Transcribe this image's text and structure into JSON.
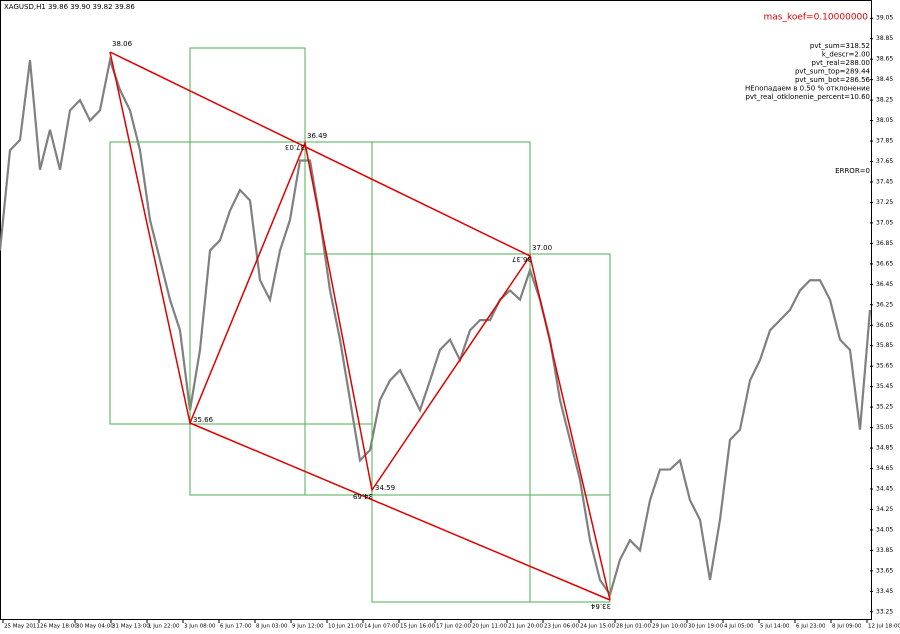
{
  "chart_data": {
    "type": "line",
    "title": "XAGUSD,H1  39.86 39.90 39.82 39.86",
    "koef": "mas_koef=0.10000000",
    "info": [
      "pvt_sum=318.52",
      "k_descr=2.00",
      "pvt_real=288.00",
      "pvt_sum_top=289.44",
      "pvt_sum_bot=286.56",
      "НЕпопадаем в 0.50 % отклонение",
      "pvt_real_otklonenie_percent=10.60"
    ],
    "error": "ERROR=0",
    "annotations": [
      "38.06",
      "36.49",
      "37.00",
      "35.66",
      "34.59"
    ],
    "annotations_flipped": [
      "37.03",
      "36.37",
      "34.69",
      "33.64"
    ],
    "x": [
      0,
      1,
      2,
      3,
      4,
      5,
      6,
      7,
      8,
      9,
      10,
      11,
      12,
      13,
      14,
      15,
      16,
      17,
      18,
      19,
      20,
      21,
      22,
      23,
      24,
      25,
      26,
      27,
      28,
      29,
      30,
      31,
      32,
      33,
      34,
      35,
      36,
      37,
      38,
      39,
      40,
      41,
      42,
      43,
      44,
      45,
      46,
      47,
      48,
      49,
      50,
      51,
      52,
      53,
      54,
      55,
      56,
      57,
      58,
      59,
      60,
      61,
      62,
      63,
      64,
      65,
      66,
      67,
      68,
      69,
      70,
      71,
      72,
      73,
      74,
      75,
      76,
      77,
      78,
      79,
      80,
      81,
      82,
      83,
      84,
      85,
      86,
      87
    ],
    "series": [
      {
        "name": "XAGUSD",
        "color": "#808080",
        "values": [
          36.78,
          37.76,
          37.86,
          38.64,
          37.57,
          37.96,
          37.57,
          38.15,
          38.25,
          38.05,
          38.15,
          38.64,
          38.35,
          38.15,
          37.76,
          37.08,
          36.69,
          36.3,
          36.0,
          35.22,
          35.81,
          36.78,
          36.88,
          37.17,
          37.37,
          37.27,
          36.49,
          36.3,
          36.78,
          37.08,
          37.66,
          37.66,
          37.08,
          36.39,
          35.91,
          35.32,
          34.73,
          34.83,
          35.32,
          35.51,
          35.61,
          35.42,
          35.22,
          35.51,
          35.81,
          35.91,
          35.71,
          36.0,
          36.1,
          36.1,
          36.3,
          36.39,
          36.3,
          36.59,
          36.3,
          35.91,
          35.32,
          34.93,
          34.54,
          33.95,
          33.56,
          33.42,
          33.76,
          33.95,
          33.85,
          34.34,
          34.64,
          34.64,
          34.73,
          34.34,
          34.15,
          33.56,
          34.15,
          34.93,
          35.03,
          35.51,
          35.71,
          36.0,
          36.1,
          36.2,
          36.39,
          36.49,
          36.49,
          36.3,
          35.91,
          35.81,
          35.03,
          36.2
        ]
      }
    ],
    "xlim": [
      0,
      87
    ],
    "xticks": [
      {
        "value": 0.3,
        "label": "25 May 2011"
      },
      {
        "value": 3.9,
        "label": "26 May 18:00"
      },
      {
        "value": 7.5,
        "label": "30 May 04:00"
      },
      {
        "value": 11.1,
        "label": "31 May 13:00"
      },
      {
        "value": 14.7,
        "label": "1 Jun 22:00"
      },
      {
        "value": 18.3,
        "label": "3 Jun 08:00"
      },
      {
        "value": 21.9,
        "label": "6 Jun 17:00"
      },
      {
        "value": 25.5,
        "label": "8 Jun 03:00"
      },
      {
        "value": 29.1,
        "label": "9 Jun 12:00"
      },
      {
        "value": 32.7,
        "label": "10 Jun 21:00"
      },
      {
        "value": 36.3,
        "label": "14 Jun 07:00"
      },
      {
        "value": 39.9,
        "label": "15 Jun 16:00"
      },
      {
        "value": 43.5,
        "label": "17 Jun 02:00"
      },
      {
        "value": 47.1,
        "label": "20 Jun 11:00"
      },
      {
        "value": 50.7,
        "label": "21 Jun 20:00"
      },
      {
        "value": 54.3,
        "label": "23 Jun 06:00"
      },
      {
        "value": 57.9,
        "label": "24 Jun 15:00"
      },
      {
        "value": 61.5,
        "label": "28 Jun 01:00"
      },
      {
        "value": 65.1,
        "label": "29 Jun 10:00"
      },
      {
        "value": 68.7,
        "label": "30 Jun 19:00"
      },
      {
        "value": 72.3,
        "label": "4 Jul 05:00"
      },
      {
        "value": 75.9,
        "label": "5 Jul 14:00"
      },
      {
        "value": 79.5,
        "label": "6 Jul 23:00"
      },
      {
        "value": 83.1,
        "label": "8 Jul 09:00"
      },
      {
        "value": 86.7,
        "label": "12 Jul 18:00"
      }
    ],
    "ylim": [
      33.17,
      39.15
    ],
    "yticks": [
      39.05,
      38.85,
      38.65,
      38.45,
      38.25,
      38.05,
      37.85,
      37.65,
      37.45,
      37.25,
      37.05,
      36.85,
      36.65,
      36.45,
      36.25,
      36.05,
      35.85,
      35.65,
      35.45,
      35.25,
      35.05,
      34.85,
      34.65,
      34.45,
      34.25,
      34.05,
      33.85,
      33.65,
      33.45,
      33.25
    ],
    "grid": false
  }
}
